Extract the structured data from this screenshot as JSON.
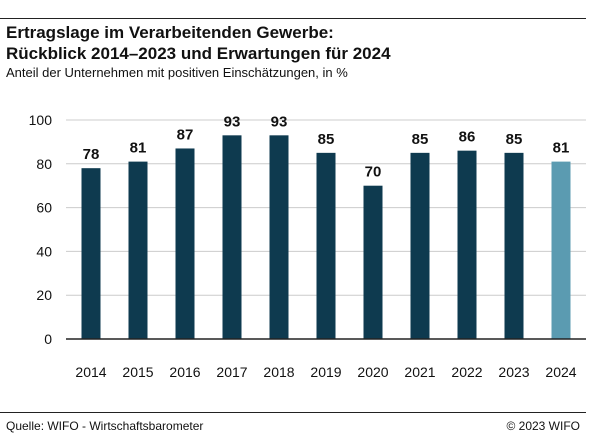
{
  "header": {
    "title_line1": "Ertragslage im Verarbeitenden Gewerbe:",
    "title_line2": "Rückblick 2014–2023 und Erwartungen für 2024",
    "subtitle": "Anteil der Unternehmen mit positiven Einschätzungen, in %"
  },
  "footer": {
    "source": "Quelle: WIFO - Wirtschaftsbarometer",
    "copyright": "© 2023 WIFO"
  },
  "colors": {
    "actual": "#0e3a4f",
    "expectation": "#5b9bb1",
    "gridline": "#cccccc",
    "axis": "#222222"
  },
  "chart_data": {
    "type": "bar",
    "categories": [
      "2014",
      "2015",
      "2016",
      "2017",
      "2018",
      "2019",
      "2020",
      "2021",
      "2022",
      "2023",
      "2024"
    ],
    "values": [
      78,
      81,
      87,
      93,
      93,
      85,
      70,
      85,
      86,
      85,
      81
    ],
    "data_labels": [
      "78",
      "81",
      "87",
      "93",
      "93",
      "85",
      "70",
      "85",
      "86",
      "85",
      "81"
    ],
    "expectation_index": 10,
    "ylim": [
      0,
      100
    ],
    "yticks": [
      0,
      20,
      40,
      60,
      80,
      100
    ],
    "grid": true,
    "legend": false
  }
}
